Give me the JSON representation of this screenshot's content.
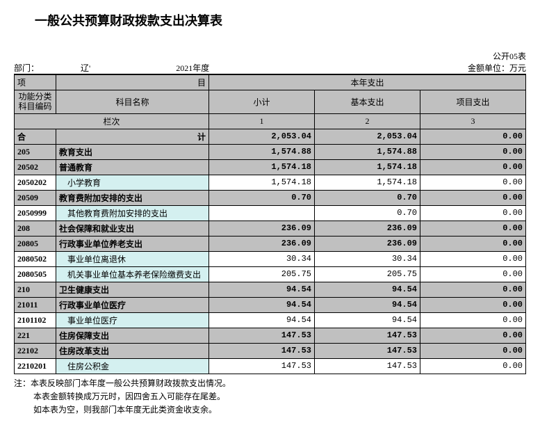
{
  "title": "一般公共预算财政拨款支出决算表",
  "form_no": "公开05表",
  "dept_label": "部门：",
  "dept_value": "辽'",
  "year": "2021年度",
  "unit": "金额单位：万元",
  "header": {
    "proj_left": "项",
    "proj_right": "目",
    "this_year": "本年支出",
    "func_code": "功能分类科目编码",
    "subj_name": "科目名称",
    "subtotal": "小计",
    "basic": "基本支出",
    "project": "项目支出",
    "col_label": "栏次",
    "c1": "1",
    "c2": "2",
    "c3": "3",
    "sum_left": "合",
    "sum_right": "计"
  },
  "totals": {
    "v1": "2,053.04",
    "v2": "2,053.04",
    "v3": "0.00"
  },
  "rows": [
    {
      "cls": "cat",
      "code": "205",
      "name": "教育支出",
      "v1": "1,574.88",
      "v2": "1,574.88",
      "v3": "0.00"
    },
    {
      "cls": "cat",
      "code": "20502",
      "name": "普通教育",
      "v1": "1,574.18",
      "v2": "1,574.18",
      "v3": "0.00"
    },
    {
      "cls": "leaf",
      "code": "2050202",
      "name": "小学教育",
      "indent": 1,
      "v1": "1,574.18",
      "v2": "1,574.18",
      "v3": "0.00"
    },
    {
      "cls": "cat",
      "code": "20509",
      "name": "教育费附加安排的支出",
      "v1": "0.70",
      "v2": "0.70",
      "v3": "0.00"
    },
    {
      "cls": "leaf",
      "code": "2050999",
      "name": "其他教育费附加安排的支出",
      "indent": 1,
      "v1": "",
      "v2": "0.70",
      "v3": "0.00"
    },
    {
      "cls": "cat",
      "code": "208",
      "name": "社会保障和就业支出",
      "v1": "236.09",
      "v2": "236.09",
      "v3": "0.00"
    },
    {
      "cls": "cat",
      "code": "20805",
      "name": "行政事业单位养老支出",
      "v1": "236.09",
      "v2": "236.09",
      "v3": "0.00"
    },
    {
      "cls": "leaf",
      "code": "2080502",
      "name": "事业单位离退休",
      "indent": 1,
      "v1": "30.34",
      "v2": "30.34",
      "v3": "0.00"
    },
    {
      "cls": "leaf",
      "code": "2080505",
      "name": "机关事业单位基本养老保险缴费支出",
      "indent": 1,
      "v1": "205.75",
      "v2": "205.75",
      "v3": "0.00"
    },
    {
      "cls": "cat",
      "code": "210",
      "name": "卫生健康支出",
      "v1": "94.54",
      "v2": "94.54",
      "v3": "0.00"
    },
    {
      "cls": "cat",
      "code": "21011",
      "name": "行政事业单位医疗",
      "v1": "94.54",
      "v2": "94.54",
      "v3": "0.00"
    },
    {
      "cls": "leaf",
      "code": "2101102",
      "name": "事业单位医疗",
      "indent": 1,
      "v1": "94.54",
      "v2": "94.54",
      "v3": "0.00"
    },
    {
      "cls": "cat",
      "code": "221",
      "name": "住房保障支出",
      "v1": "147.53",
      "v2": "147.53",
      "v3": "0.00"
    },
    {
      "cls": "cat",
      "code": "22102",
      "name": "住房改革支出",
      "v1": "147.53",
      "v2": "147.53",
      "v3": "0.00"
    },
    {
      "cls": "leaf",
      "code": "2210201",
      "name": "住房公积金",
      "indent": 1,
      "v1": "147.53",
      "v2": "147.53",
      "v3": "0.00"
    }
  ],
  "notes": [
    "注：本表反映部门本年度一般公共预算财政拨款支出情况。",
    "本表金额转换成万元时，因四舍五入可能存在尾差。",
    "如本表为空，则我部门本年度无此类资金收支余。"
  ]
}
